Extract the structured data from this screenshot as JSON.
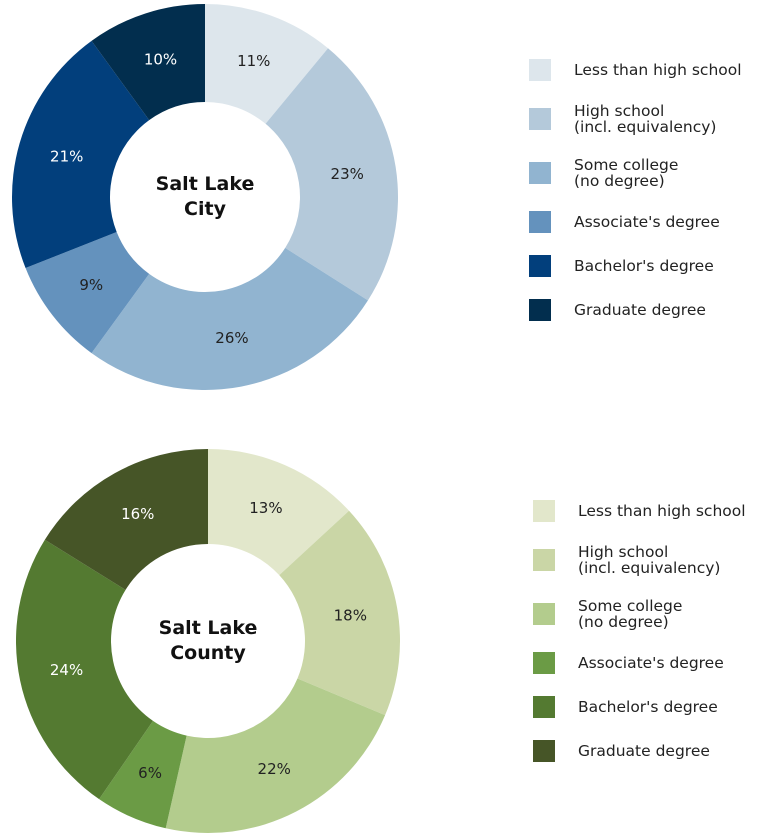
{
  "chart_data": [
    {
      "type": "pie",
      "center_label": "Salt Lake\nCity",
      "categories": [
        "Less than high school",
        "High school\n(incl. equivalency)",
        "Some college\n(no degree)",
        "Associate's degree",
        "Bachelor's degree",
        "Graduate degree"
      ],
      "values": [
        11,
        23,
        26,
        9,
        21,
        10
      ],
      "value_labels": [
        "11%",
        "23%",
        "26%",
        "9%",
        "21%",
        "10%"
      ],
      "colors": [
        "#dde6ec",
        "#b4c9da",
        "#91b4d0",
        "#6492bd",
        "#023f7c",
        "#022e4e"
      ]
    },
    {
      "type": "pie",
      "center_label": "Salt Lake\nCounty",
      "categories": [
        "Less than high school",
        "High school\n(incl. equivalency)",
        "Some college\n(no degree)",
        "Associate's degree",
        "Bachelor's degree",
        "Graduate degree"
      ],
      "values": [
        13,
        18,
        22,
        6,
        24,
        16
      ],
      "value_labels": [
        "13%",
        "18%",
        "22%",
        "6%",
        "24%",
        "16%"
      ],
      "colors": [
        "#e2e7cb",
        "#cad6a6",
        "#b3cc8d",
        "#6b9b45",
        "#547a31",
        "#465527"
      ]
    }
  ]
}
